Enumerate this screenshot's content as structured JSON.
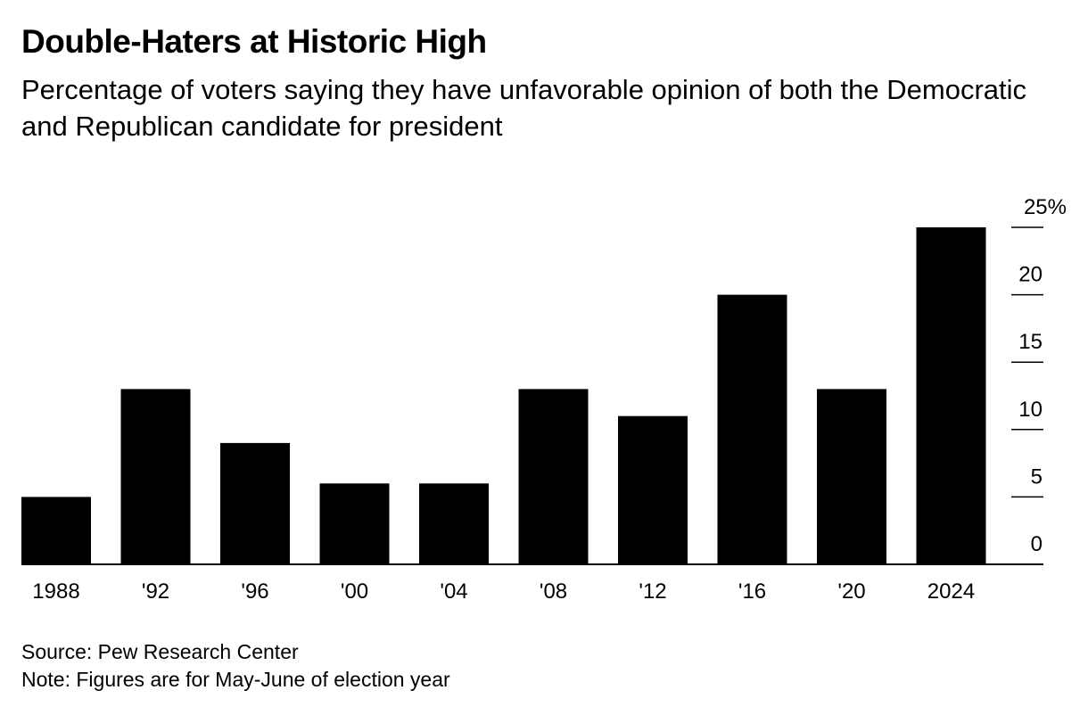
{
  "title": "Double-Haters at Historic High",
  "subtitle": "Percentage of voters saying they have unfavorable opinion of both the Democratic and Republican candidate for president",
  "source": "Source: Pew Research Center",
  "note": "Note: Figures are for May-June of election year",
  "colors": {
    "bar": "#000000",
    "text": "#000000",
    "background": "#ffffff"
  },
  "chart_data": {
    "type": "bar",
    "categories": [
      "1988",
      "'92",
      "'96",
      "'00",
      "'04",
      "'08",
      "'12",
      "'16",
      "'20",
      "2024"
    ],
    "values": [
      5,
      13,
      9,
      6,
      6,
      13,
      11,
      20,
      13,
      25
    ],
    "ylim": [
      0,
      25
    ],
    "yticks": [
      {
        "value": 25,
        "label": "25%"
      },
      {
        "value": 20,
        "label": "20"
      },
      {
        "value": 15,
        "label": "15"
      },
      {
        "value": 10,
        "label": "10"
      },
      {
        "value": 5,
        "label": "5"
      },
      {
        "value": 0,
        "label": "0"
      }
    ],
    "y_axis_side": "right",
    "grid": false,
    "xlabel": "",
    "ylabel": ""
  }
}
